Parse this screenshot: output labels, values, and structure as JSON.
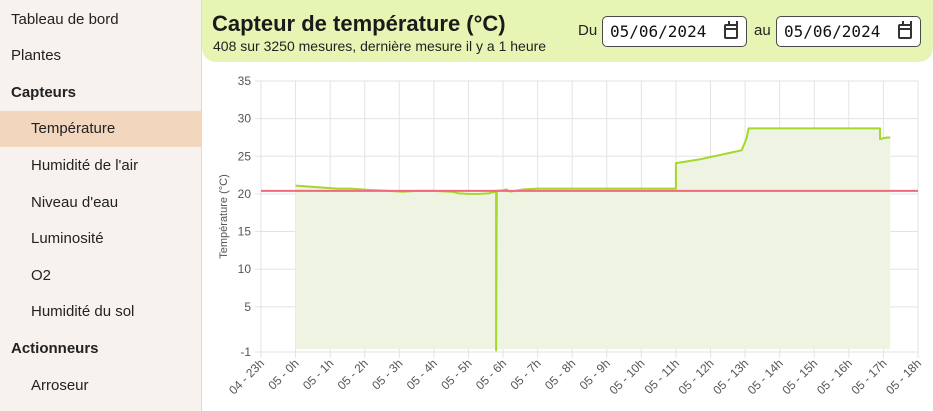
{
  "sidebar": {
    "items": [
      {
        "label": "Tableau de bord",
        "kind": "top"
      },
      {
        "label": "Plantes",
        "kind": "top"
      },
      {
        "label": "Capteurs",
        "kind": "heading"
      },
      {
        "label": "Température",
        "kind": "sub",
        "active": true
      },
      {
        "label": "Humidité de l'air",
        "kind": "sub"
      },
      {
        "label": "Niveau d'eau",
        "kind": "sub"
      },
      {
        "label": "Luminosité",
        "kind": "sub"
      },
      {
        "label": "O2",
        "kind": "sub"
      },
      {
        "label": "Humidité du sol",
        "kind": "sub"
      },
      {
        "label": "Actionneurs",
        "kind": "heading"
      },
      {
        "label": "Arroseur",
        "kind": "sub"
      }
    ]
  },
  "header": {
    "title": "Capteur de température (°C)",
    "subtitle": "408 sur 3250 mesures, dernière mesure il y a 1 heure",
    "from_label": "Du",
    "to_label": "au",
    "from_date": "05/06/2024",
    "to_date": "05/06/2024"
  },
  "colors": {
    "accent": "#e6f5b3",
    "series_line": "#a4d82a",
    "series_fill": "#eef4e1",
    "threshold_line": "#ef6a7c",
    "sidebar_active": "#f2d6bd"
  },
  "chart_data": {
    "type": "line",
    "ylabel": "Température (°C)",
    "y_ticks": [
      -1,
      5,
      10,
      15,
      20,
      25,
      30,
      35
    ],
    "x_ticks": [
      "04 - 23h",
      "05 - 0h",
      "05 - 1h",
      "05 - 2h",
      "05 - 3h",
      "05 - 4h",
      "05 - 5h",
      "05 - 6h",
      "05 - 7h",
      "05 - 8h",
      "05 - 9h",
      "05 - 10h",
      "05 - 11h",
      "05 - 12h",
      "05 - 13h",
      "05 - 14h",
      "05 - 15h",
      "05 - 16h",
      "05 - 17h",
      "05 - 18h"
    ],
    "threshold": 20.4,
    "grid": true,
    "series": [
      {
        "points": [
          [
            1.0,
            21.1
          ],
          [
            1.3,
            21.0
          ],
          [
            1.6,
            20.9
          ],
          [
            1.9,
            20.8
          ],
          [
            2.2,
            20.7
          ],
          [
            2.6,
            20.7
          ],
          [
            2.9,
            20.6
          ],
          [
            3.3,
            20.5
          ],
          [
            3.7,
            20.4
          ],
          [
            4.1,
            20.3
          ],
          [
            4.5,
            20.4
          ],
          [
            5.0,
            20.4
          ],
          [
            5.5,
            20.3
          ],
          [
            5.7,
            20.1
          ],
          [
            6.0,
            20.0
          ],
          [
            6.3,
            20.0
          ],
          [
            6.6,
            20.1
          ],
          [
            6.8,
            20.3
          ],
          [
            6.8,
            -0.8
          ],
          [
            6.82,
            20.4
          ],
          [
            7.0,
            20.5
          ],
          [
            7.1,
            20.6
          ],
          [
            7.2,
            20.3
          ],
          [
            7.6,
            20.6
          ],
          [
            8.0,
            20.7
          ],
          [
            12.0,
            20.7
          ],
          [
            12.0,
            24.1
          ],
          [
            12.3,
            24.3
          ],
          [
            12.7,
            24.6
          ],
          [
            13.0,
            24.9
          ],
          [
            13.3,
            25.2
          ],
          [
            13.6,
            25.5
          ],
          [
            13.9,
            25.8
          ],
          [
            14.0,
            26.9
          ],
          [
            14.05,
            27.5
          ],
          [
            14.1,
            28.7
          ],
          [
            17.9,
            28.7
          ],
          [
            17.9,
            27.3
          ],
          [
            18.1,
            27.5
          ],
          [
            18.2,
            27.5
          ]
        ]
      }
    ]
  }
}
